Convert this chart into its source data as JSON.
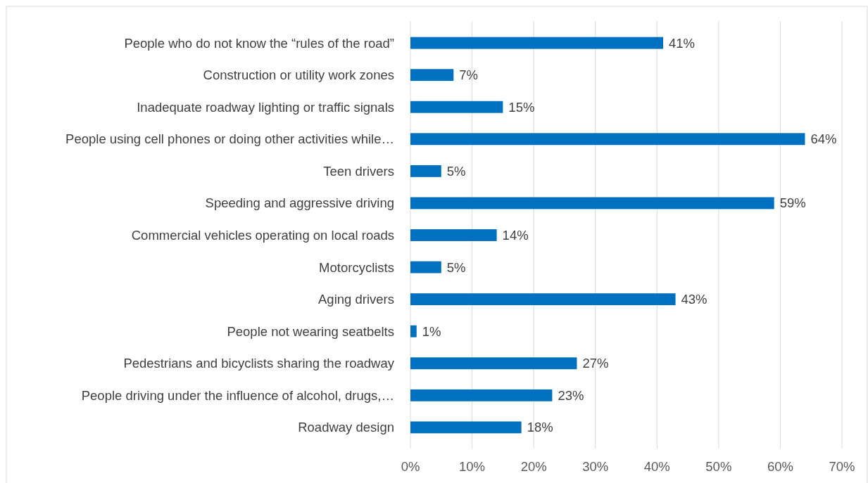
{
  "chart_data": {
    "type": "bar",
    "orientation": "horizontal",
    "categories": [
      "People who do not know the “rules of the road”",
      "Construction or utility work zones",
      "Inadequate roadway lighting or traffic signals",
      "People using cell phones or doing other activities while…",
      "Teen drivers",
      "Speeding and aggressive driving",
      "Commercial vehicles operating on local roads",
      "Motorcyclists",
      "Aging drivers",
      "People not wearing seatbelts",
      "Pedestrians and bicyclists sharing the roadway",
      "People driving under the influence of alcohol, drugs,…",
      "Roadway design"
    ],
    "values": [
      41,
      7,
      15,
      64,
      5,
      59,
      14,
      5,
      43,
      1,
      27,
      23,
      18
    ],
    "value_labels": [
      "41%",
      "7%",
      "15%",
      "64%",
      "5%",
      "59%",
      "14%",
      "5%",
      "43%",
      "1%",
      "27%",
      "23%",
      "18%"
    ],
    "color": "#0070c0",
    "xlim": [
      0,
      70
    ],
    "xticks": [
      {
        "value": 0,
        "label": "0%"
      },
      {
        "value": 10,
        "label": "10%"
      },
      {
        "value": 20,
        "label": "20%"
      },
      {
        "value": 30,
        "label": "30%"
      },
      {
        "value": 40,
        "label": "40%"
      },
      {
        "value": 50,
        "label": "50%"
      },
      {
        "value": 60,
        "label": "60%"
      },
      {
        "value": 70,
        "label": "70%"
      }
    ],
    "grid": "x"
  }
}
